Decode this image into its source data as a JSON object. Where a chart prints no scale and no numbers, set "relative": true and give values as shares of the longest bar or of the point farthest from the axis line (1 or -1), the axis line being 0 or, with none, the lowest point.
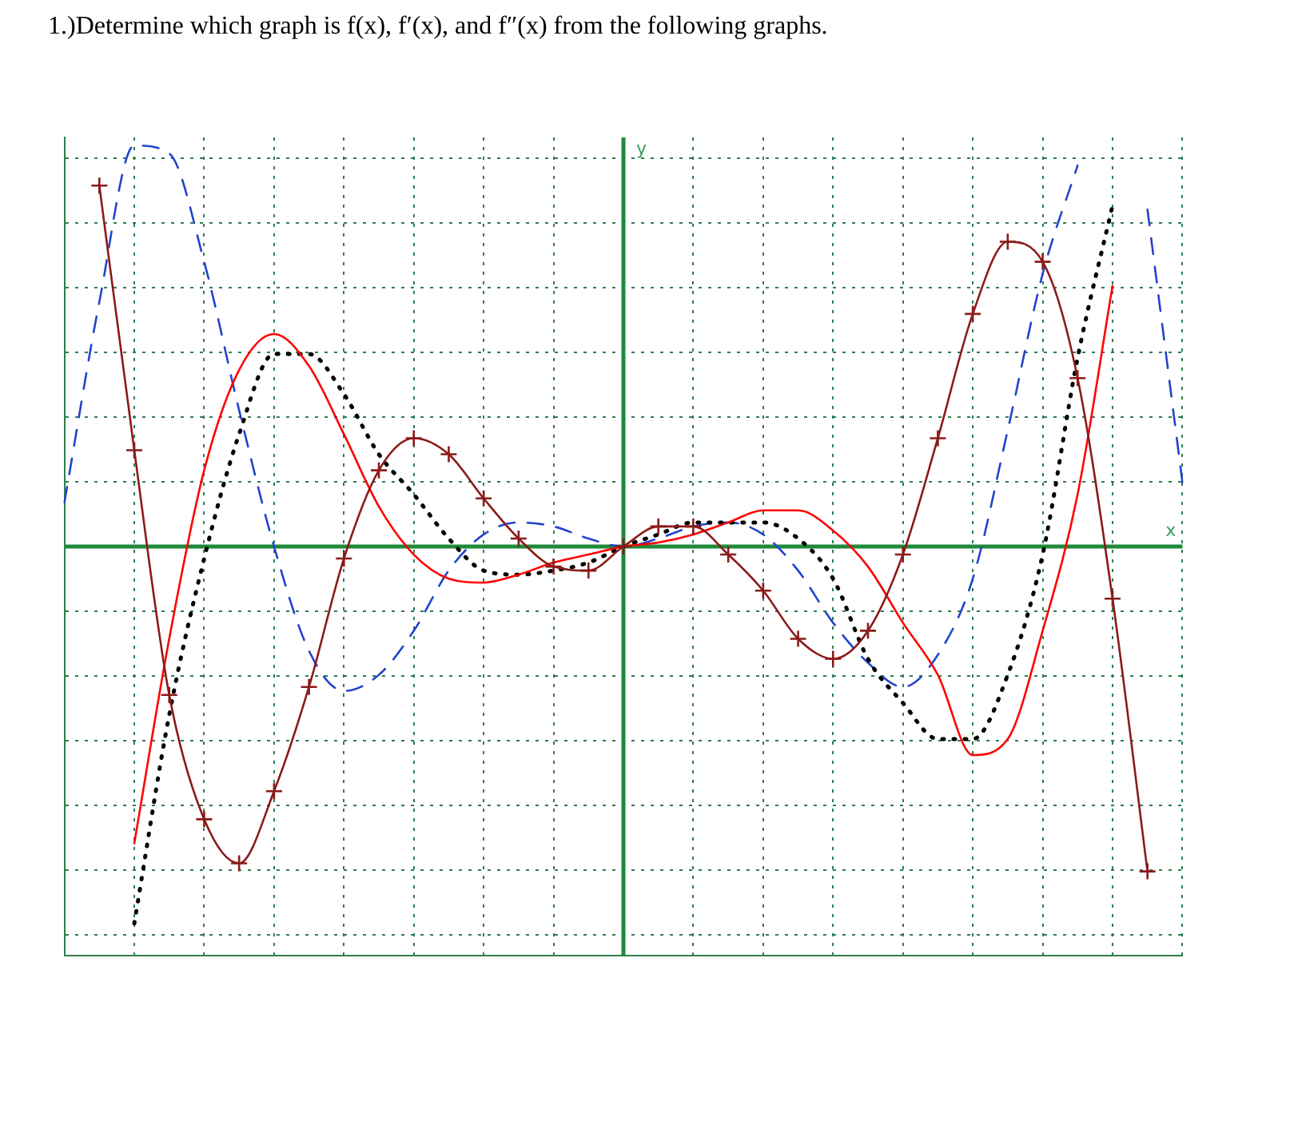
{
  "chart_data": {
    "type": "line",
    "title": "1.)Determine which graph is f(x), f′(x), and f″(x) from the following graphs.",
    "xlabel": "x",
    "ylabel": "y",
    "relative": true,
    "grid": true,
    "legend": false,
    "ref_lines": [
      {
        "axis": "y",
        "value": 0,
        "color": "#1f8a3a"
      }
    ],
    "categories": [
      null,
      null,
      null,
      null,
      null,
      null,
      null,
      null,
      null,
      null,
      null,
      null,
      null,
      null,
      null,
      null,
      null,
      null,
      null,
      null,
      null,
      null,
      null,
      null,
      null,
      null,
      null,
      null,
      null,
      null,
      null,
      null,
      null
    ],
    "series": [
      {
        "color": "#8b1a1a",
        "marker": "cross",
        "line_style": "solid",
        "values": [
          null,
          0.9,
          0.24,
          -0.37,
          -0.68,
          -0.79,
          -0.61,
          -0.35,
          -0.03,
          0.19,
          0.27,
          0.23,
          0.12,
          0.02,
          -0.05,
          -0.06,
          0,
          0.05,
          0.05,
          -0.02,
          -0.11,
          -0.23,
          -0.28,
          -0.21,
          -0.02,
          0.27,
          0.58,
          0.76,
          0.71,
          0.42,
          -0.13,
          -0.81,
          null
        ]
      },
      {
        "color": "#ff0000",
        "marker": "none",
        "line_style": "solid",
        "values": [
          null,
          null,
          -0.74,
          -0.23,
          0.19,
          0.44,
          0.53,
          0.45,
          0.28,
          0.1,
          -0.02,
          -0.08,
          -0.09,
          -0.07,
          -0.04,
          -0.02,
          0,
          0.01,
          0.03,
          0.06,
          0.09,
          0.09,
          0.04,
          -0.05,
          -0.19,
          -0.32,
          -0.52,
          -0.48,
          -0.21,
          0.13,
          0.65,
          null,
          null
        ]
      },
      {
        "color": "#000000",
        "marker": "none",
        "line_style": "dotted",
        "values": [
          null,
          null,
          -0.94,
          -0.42,
          -0.03,
          0.28,
          0.48,
          0.48,
          0.38,
          0.23,
          0.13,
          0.02,
          -0.06,
          -0.07,
          -0.06,
          -0.04,
          0,
          0.03,
          0.06,
          0.06,
          0.06,
          0.02,
          -0.08,
          -0.28,
          -0.39,
          -0.48,
          -0.48,
          -0.32,
          -0.02,
          0.47,
          0.85,
          null,
          null
        ]
      },
      {
        "color": "#2244cc",
        "marker": "none",
        "line_style": "dashed",
        "values": [
          0.11,
          0.61,
          1,
          0.98,
          0.71,
          0.34,
          0,
          -0.26,
          -0.36,
          -0.32,
          -0.21,
          -0.06,
          0.03,
          0.06,
          0.05,
          0.02,
          0,
          0.02,
          0.05,
          0.06,
          0.03,
          -0.06,
          -0.19,
          -0.29,
          -0.35,
          -0.27,
          -0.08,
          0.29,
          0.68,
          0.95,
          null,
          0.84,
          0.16
        ]
      }
    ]
  }
}
